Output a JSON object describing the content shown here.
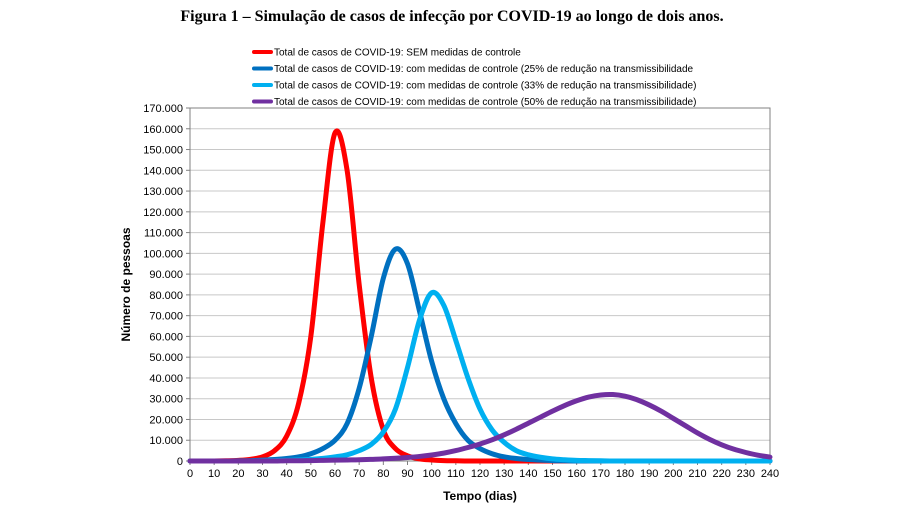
{
  "figure_title": "Figura 1 – Simulação de casos de infecção por COVID-19 ao longo de dois anos.",
  "chart_data": {
    "type": "line",
    "title": "Figura 1 – Simulação de casos de infecção por COVID-19 ao longo de dois anos.",
    "xlabel": "Tempo (dias)",
    "ylabel": "Número de pessoas",
    "xlim": [
      0,
      240
    ],
    "ylim": [
      0,
      170000
    ],
    "grid": true,
    "legend_position": "top",
    "x_ticks": [
      "0",
      "10",
      "20",
      "30",
      "40",
      "50",
      "60",
      "70",
      "80",
      "90",
      "100",
      "110",
      "120",
      "130",
      "140",
      "150",
      "160",
      "170",
      "180",
      "190",
      "200",
      "210",
      "220",
      "230",
      "240"
    ],
    "y_ticks": [
      "0",
      "10.000",
      "20.000",
      "30.000",
      "40.000",
      "50.000",
      "60.000",
      "70.000",
      "80.000",
      "90.000",
      "100.000",
      "110.000",
      "120.000",
      "130.000",
      "140.000",
      "150.000",
      "160.000",
      "170.000"
    ],
    "x": [
      0,
      5,
      10,
      15,
      20,
      25,
      30,
      35,
      40,
      45,
      50,
      55,
      60,
      65,
      70,
      75,
      80,
      85,
      90,
      95,
      100,
      105,
      110,
      115,
      120,
      125,
      130,
      135,
      140,
      145,
      150,
      155,
      160,
      165,
      170,
      175,
      180,
      185,
      190,
      195,
      200,
      205,
      210,
      215,
      220,
      225,
      230,
      235,
      240
    ],
    "series": [
      {
        "name": "Total de casos de COVID-19: SEM medidas de controle",
        "color": "#ff0000",
        "values": [
          0,
          0,
          0,
          100,
          300,
          800,
          2000,
          5000,
          12000,
          28000,
          60000,
          115000,
          158000,
          140000,
          85000,
          40000,
          15000,
          6000,
          2500,
          1000,
          500,
          200,
          100,
          0,
          0,
          0,
          0,
          0,
          0,
          0,
          0,
          0,
          0,
          0,
          0,
          0,
          0,
          0,
          0,
          0,
          0,
          0,
          0,
          0,
          0,
          0,
          0,
          0,
          0
        ]
      },
      {
        "name": "Total de casos de COVID-19: com medidas de controle (25% de redução na transmissibilidade",
        "color": "#0070c0",
        "values": [
          0,
          0,
          0,
          0,
          100,
          200,
          400,
          700,
          1200,
          2000,
          3500,
          6000,
          10000,
          18000,
          35000,
          60000,
          88000,
          102000,
          95000,
          72000,
          48000,
          30000,
          18000,
          10000,
          6000,
          3500,
          2000,
          1200,
          700,
          400,
          200,
          100,
          0,
          0,
          0,
          0,
          0,
          0,
          0,
          0,
          0,
          0,
          0,
          0,
          0,
          0,
          0,
          0,
          0
        ]
      },
      {
        "name": "Total de casos de COVID-19: com medidas de controle (33% de redução na transmissibilidade)",
        "color": "#00b0f0",
        "values": [
          0,
          0,
          0,
          0,
          0,
          0,
          100,
          200,
          300,
          500,
          800,
          1300,
          2000,
          3000,
          5000,
          8000,
          14000,
          25000,
          45000,
          68000,
          81000,
          75000,
          58000,
          40000,
          25000,
          15000,
          9000,
          5000,
          3000,
          1800,
          1000,
          600,
          300,
          200,
          100,
          0,
          0,
          0,
          0,
          0,
          0,
          0,
          0,
          0,
          0,
          0,
          0,
          0,
          0
        ]
      },
      {
        "name": "Total de casos de COVID-19: com medidas de controle (50% de redução na transmissibilidade)",
        "color": "#7030a0",
        "values": [
          0,
          0,
          0,
          0,
          0,
          0,
          0,
          0,
          100,
          100,
          200,
          300,
          400,
          500,
          600,
          800,
          1000,
          1300,
          1700,
          2200,
          2900,
          3800,
          5000,
          6500,
          8200,
          10200,
          12600,
          15300,
          18200,
          21100,
          24000,
          26700,
          29000,
          30800,
          31800,
          32000,
          31200,
          29500,
          27000,
          24000,
          20500,
          17000,
          13500,
          10400,
          7800,
          5700,
          4100,
          2800,
          1900
        ]
      }
    ]
  }
}
